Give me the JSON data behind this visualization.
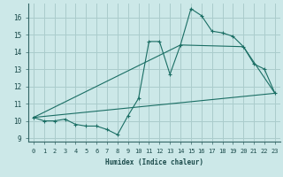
{
  "xlabel": "Humidex (Indice chaleur)",
  "bg_color": "#cce8e8",
  "grid_color": "#aacccc",
  "line_color": "#1a6e64",
  "xlim": [
    -0.5,
    23.5
  ],
  "ylim": [
    8.8,
    16.8
  ],
  "xticks": [
    0,
    1,
    2,
    3,
    4,
    5,
    6,
    7,
    8,
    9,
    10,
    11,
    12,
    13,
    14,
    15,
    16,
    17,
    18,
    19,
    20,
    21,
    22,
    23
  ],
  "yticks": [
    9,
    10,
    11,
    12,
    13,
    14,
    15,
    16
  ],
  "line1_x": [
    0,
    1,
    2,
    3,
    4,
    5,
    6,
    7,
    8,
    9,
    10,
    11,
    12,
    13,
    14,
    15,
    16,
    17,
    18,
    19,
    20,
    21,
    22,
    23
  ],
  "line1_y": [
    10.2,
    10.0,
    10.0,
    10.1,
    9.8,
    9.7,
    9.7,
    9.5,
    9.2,
    10.3,
    11.3,
    14.6,
    14.6,
    12.7,
    14.4,
    16.5,
    16.1,
    15.2,
    15.1,
    14.9,
    14.3,
    13.3,
    13.0,
    11.6
  ],
  "line2_x": [
    0,
    23
  ],
  "line2_y": [
    10.2,
    11.6
  ],
  "line3_x": [
    0,
    14,
    20,
    23
  ],
  "line3_y": [
    10.2,
    14.4,
    14.3,
    11.6
  ]
}
